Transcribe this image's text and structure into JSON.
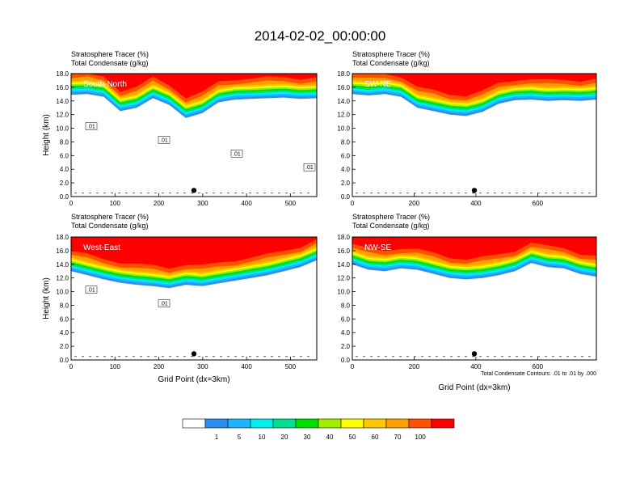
{
  "title": "2014-02-02_00:00:00",
  "chart_data": [
    {
      "type": "heatmap",
      "panel_label": "South-North",
      "title_lines": [
        "Stratosphere Tracer   (%)",
        "Total Condensate   (g/kg)"
      ],
      "ylabel": "Height (km)",
      "xlabel": "",
      "xlim": [
        0,
        560
      ],
      "ylim": [
        0,
        18
      ],
      "x_ticks": [
        "0",
        "100",
        "200",
        "300",
        "400",
        "500"
      ],
      "y_ticks": [
        "0.0",
        "2.0",
        "4.0",
        "6.0",
        "8.0",
        "10.0",
        "12.0",
        "14.0",
        "16.0",
        "18.0"
      ],
      "tracer_lower_edge_km": [
        14.9,
        15.0,
        14.6,
        12.5,
        13.0,
        14.4,
        13.4,
        11.5,
        12.2,
        13.8,
        14.2,
        14.3,
        14.4,
        14.5,
        14.3,
        14.4
      ],
      "contour_labels": [
        ".01",
        ".01",
        ".01",
        ".01"
      ],
      "marker_x": 280
    },
    {
      "type": "heatmap",
      "panel_label": "SW-NE",
      "title_lines": [
        "Stratosphere Tracer   (%)",
        "Total Condensate   (g/kg)"
      ],
      "ylabel": "",
      "xlabel": "",
      "xlim": [
        0,
        790
      ],
      "ylim": [
        0,
        18
      ],
      "x_ticks": [
        "0",
        "200",
        "400",
        "600"
      ],
      "y_ticks": [
        "0.0",
        "2.0",
        "4.0",
        "6.0",
        "8.0",
        "10.0",
        "12.0",
        "14.0",
        "16.0",
        "18.0"
      ],
      "tracer_lower_edge_km": [
        15.0,
        14.8,
        15.0,
        14.6,
        13.0,
        12.5,
        12.0,
        11.8,
        12.4,
        13.6,
        14.1,
        14.2,
        14.0,
        14.1,
        14.0,
        14.2
      ],
      "contour_labels": [],
      "marker_x": 395
    },
    {
      "type": "heatmap",
      "panel_label": "West-East",
      "title_lines": [
        "Stratosphere Tracer   (%)",
        "Total Condensate   (g/kg)"
      ],
      "ylabel": "Height (km)",
      "xlabel": "Grid Point (dx=3km)",
      "xlim": [
        0,
        560
      ],
      "ylim": [
        0,
        18
      ],
      "x_ticks": [
        "0",
        "100",
        "200",
        "300",
        "400",
        "500"
      ],
      "y_ticks": [
        "0.0",
        "2.0",
        "4.0",
        "6.0",
        "8.0",
        "10.0",
        "12.0",
        "14.0",
        "16.0",
        "18.0"
      ],
      "tracer_lower_edge_km": [
        13.0,
        12.4,
        11.8,
        11.3,
        11.0,
        10.8,
        10.5,
        11.0,
        10.8,
        11.2,
        11.6,
        12.0,
        12.4,
        13.0,
        13.6,
        14.6
      ],
      "contour_labels": [
        ".01",
        ".01"
      ],
      "marker_x": 280
    },
    {
      "type": "heatmap",
      "panel_label": "NW-SE",
      "title_lines": [
        "Stratosphere Tracer   (%)",
        "Total Condensate   (g/kg)"
      ],
      "ylabel": "",
      "xlabel": "Grid Point (dx=3km)",
      "xlim": [
        0,
        790
      ],
      "ylim": [
        0,
        18
      ],
      "x_ticks": [
        "0",
        "200",
        "400",
        "600"
      ],
      "y_ticks": [
        "0.0",
        "2.0",
        "4.0",
        "6.0",
        "8.0",
        "10.0",
        "12.0",
        "14.0",
        "16.0",
        "18.0"
      ],
      "tracer_lower_edge_km": [
        14.0,
        13.2,
        13.0,
        13.4,
        13.2,
        12.6,
        12.0,
        11.8,
        12.0,
        12.4,
        13.0,
        14.2,
        13.6,
        13.4,
        12.6,
        12.2
      ],
      "contour_labels": [],
      "marker_x": 395,
      "footnote": "Total Condensate Contours: .01 to .01 by .000"
    }
  ],
  "colorbar": {
    "labels": [
      "1",
      "5",
      "10",
      "20",
      "30",
      "40",
      "50",
      "60",
      "70",
      "100"
    ],
    "colors": [
      "#ffffff",
      "#2e8ef0",
      "#1eb4ff",
      "#00f0f0",
      "#00e090",
      "#00e000",
      "#a0f000",
      "#ffff00",
      "#ffc800",
      "#ffa000",
      "#ff5000",
      "#ff0000"
    ]
  }
}
